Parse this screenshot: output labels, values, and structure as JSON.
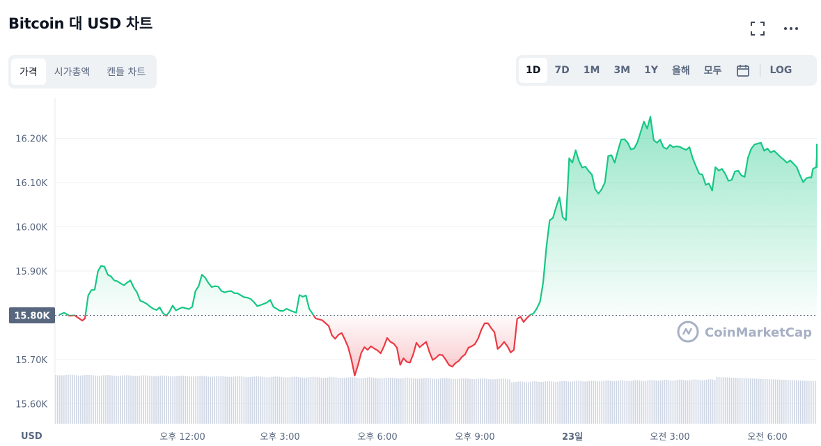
{
  "header": {
    "title": "Bitcoin 대 USD 차트"
  },
  "icons": {
    "fullscreen": "fullscreen-icon",
    "more": "more-dots-icon",
    "calendar": "calendar-icon"
  },
  "tabs": [
    "가격",
    "시가총액",
    "캔들 차트"
  ],
  "range_tabs": [
    "1D",
    "7D",
    "1M",
    "3M",
    "1Y",
    "올해",
    "모두"
  ],
  "log_label": "LOG",
  "watermark": "CoinMarketCap",
  "colors": {
    "up": "#16c784",
    "down": "#ea3943",
    "volume": "#cfd6e4",
    "baseline_label_bg": "#58667e"
  },
  "chart_data": {
    "type": "area",
    "currency_label": "USD",
    "baseline": 15800,
    "baseline_label": "15.80K",
    "ylim": [
      15550,
      16300
    ],
    "y_ticks": [
      {
        "value": 16200,
        "label": "16.20K"
      },
      {
        "value": 16100,
        "label": "16.10K"
      },
      {
        "value": 16000,
        "label": "16.00K"
      },
      {
        "value": 15900,
        "label": "15.90K"
      },
      {
        "value": 15700,
        "label": "15.70K"
      },
      {
        "value": 15600,
        "label": "15.60K"
      }
    ],
    "x_ticks": [
      {
        "hour": 12,
        "label": "오후 12:00"
      },
      {
        "hour": 15,
        "label": "오후 3:00"
      },
      {
        "hour": 18,
        "label": "오후 6:00"
      },
      {
        "hour": 21,
        "label": "오후 9:00"
      },
      {
        "hour": 24,
        "label": "23일"
      },
      {
        "hour": 27,
        "label": "오전 3:00"
      },
      {
        "hour": 30,
        "label": "오전 6:00"
      }
    ],
    "xlim_hours": [
      8.2,
      31.65
    ],
    "series": [
      {
        "points": [
          [
            8.2,
            15801
          ],
          [
            8.36,
            15806
          ],
          [
            8.52,
            15799
          ],
          [
            8.68,
            15800
          ],
          [
            8.8,
            15794
          ],
          [
            8.92,
            15788
          ],
          [
            9.0,
            15793
          ],
          [
            9.1,
            15845
          ],
          [
            9.2,
            15857
          ],
          [
            9.3,
            15858
          ],
          [
            9.4,
            15900
          ],
          [
            9.5,
            15912
          ],
          [
            9.6,
            15910
          ],
          [
            9.7,
            15892
          ],
          [
            9.8,
            15888
          ],
          [
            9.9,
            15879
          ],
          [
            10.0,
            15877
          ],
          [
            10.1,
            15872
          ],
          [
            10.2,
            15868
          ],
          [
            10.3,
            15874
          ],
          [
            10.4,
            15879
          ],
          [
            10.5,
            15863
          ],
          [
            10.6,
            15852
          ],
          [
            10.7,
            15833
          ],
          [
            10.8,
            15830
          ],
          [
            10.9,
            15826
          ],
          [
            11.0,
            15820
          ],
          [
            11.1,
            15815
          ],
          [
            11.2,
            15812
          ],
          [
            11.3,
            15818
          ],
          [
            11.4,
            15805
          ],
          [
            11.5,
            15799
          ],
          [
            11.6,
            15808
          ],
          [
            11.7,
            15822
          ],
          [
            11.8,
            15811
          ],
          [
            11.9,
            15815
          ],
          [
            12.0,
            15818
          ],
          [
            12.2,
            15814
          ],
          [
            12.3,
            15819
          ],
          [
            12.4,
            15855
          ],
          [
            12.5,
            15866
          ],
          [
            12.6,
            15892
          ],
          [
            12.7,
            15885
          ],
          [
            12.8,
            15873
          ],
          [
            12.9,
            15864
          ],
          [
            13.0,
            15866
          ],
          [
            13.1,
            15865
          ],
          [
            13.2,
            15855
          ],
          [
            13.3,
            15852
          ],
          [
            13.4,
            15854
          ],
          [
            13.5,
            15855
          ],
          [
            13.6,
            15850
          ],
          [
            13.7,
            15850
          ],
          [
            13.8,
            15845
          ],
          [
            13.9,
            15841
          ],
          [
            14.0,
            15840
          ],
          [
            14.1,
            15837
          ],
          [
            14.2,
            15830
          ],
          [
            14.3,
            15821
          ],
          [
            14.4,
            15823
          ],
          [
            14.5,
            15826
          ],
          [
            14.6,
            15829
          ],
          [
            14.7,
            15835
          ],
          [
            14.8,
            15819
          ],
          [
            14.9,
            15815
          ],
          [
            15.0,
            15810
          ],
          [
            15.1,
            15810
          ],
          [
            15.2,
            15815
          ],
          [
            15.35,
            15810
          ],
          [
            15.5,
            15806
          ],
          [
            15.6,
            15846
          ],
          [
            15.7,
            15842
          ],
          [
            15.8,
            15845
          ],
          [
            15.9,
            15815
          ],
          [
            16.0,
            15804
          ],
          [
            16.1,
            15793
          ],
          [
            16.3,
            15789
          ],
          [
            16.5,
            15776
          ],
          [
            16.6,
            15755
          ],
          [
            16.7,
            15747
          ],
          [
            16.8,
            15756
          ],
          [
            16.9,
            15760
          ],
          [
            17.0,
            15745
          ],
          [
            17.1,
            15728
          ],
          [
            17.2,
            15700
          ],
          [
            17.3,
            15664
          ],
          [
            17.4,
            15687
          ],
          [
            17.5,
            15715
          ],
          [
            17.6,
            15728
          ],
          [
            17.7,
            15722
          ],
          [
            17.8,
            15730
          ],
          [
            17.9,
            15725
          ],
          [
            18.0,
            15721
          ],
          [
            18.1,
            15714
          ],
          [
            18.2,
            15730
          ],
          [
            18.3,
            15749
          ],
          [
            18.4,
            15740
          ],
          [
            18.5,
            15736
          ],
          [
            18.6,
            15727
          ],
          [
            18.7,
            15688
          ],
          [
            18.8,
            15703
          ],
          [
            18.9,
            15695
          ],
          [
            19.0,
            15693
          ],
          [
            19.1,
            15712
          ],
          [
            19.2,
            15738
          ],
          [
            19.3,
            15728
          ],
          [
            19.4,
            15734
          ],
          [
            19.5,
            15740
          ],
          [
            19.6,
            15717
          ],
          [
            19.7,
            15699
          ],
          [
            19.8,
            15704
          ],
          [
            19.9,
            15711
          ],
          [
            20.0,
            15710
          ],
          [
            20.1,
            15700
          ],
          [
            20.2,
            15688
          ],
          [
            20.3,
            15684
          ],
          [
            20.4,
            15692
          ],
          [
            20.5,
            15697
          ],
          [
            20.6,
            15706
          ],
          [
            20.7,
            15712
          ],
          [
            20.8,
            15727
          ],
          [
            20.9,
            15730
          ],
          [
            21.0,
            15735
          ],
          [
            21.1,
            15748
          ],
          [
            21.2,
            15768
          ],
          [
            21.3,
            15782
          ],
          [
            21.4,
            15782
          ],
          [
            21.5,
            15771
          ],
          [
            21.6,
            15762
          ],
          [
            21.7,
            15724
          ],
          [
            21.8,
            15731
          ],
          [
            21.9,
            15740
          ],
          [
            22.0,
            15730
          ],
          [
            22.1,
            15716
          ],
          [
            22.2,
            15722
          ],
          [
            22.3,
            15792
          ],
          [
            22.4,
            15797
          ],
          [
            22.5,
            15785
          ],
          [
            22.6,
            15794
          ],
          [
            22.7,
            15801
          ],
          [
            22.8,
            15804
          ],
          [
            22.9,
            15815
          ],
          [
            23.0,
            15830
          ],
          [
            23.1,
            15874
          ],
          [
            23.2,
            15955
          ],
          [
            23.3,
            16015
          ],
          [
            23.4,
            16020
          ],
          [
            23.5,
            16045
          ],
          [
            23.6,
            16067
          ],
          [
            23.7,
            16022
          ],
          [
            23.8,
            16015
          ],
          [
            23.9,
            16155
          ],
          [
            24.0,
            16145
          ],
          [
            24.1,
            16173
          ],
          [
            24.2,
            16149
          ],
          [
            24.3,
            16134
          ],
          [
            24.4,
            16136
          ],
          [
            24.5,
            16126
          ],
          [
            24.6,
            16118
          ],
          [
            24.7,
            16085
          ],
          [
            24.8,
            16075
          ],
          [
            24.9,
            16085
          ],
          [
            25.0,
            16100
          ],
          [
            25.1,
            16160
          ],
          [
            25.2,
            16162
          ],
          [
            25.3,
            16145
          ],
          [
            25.4,
            16172
          ],
          [
            25.5,
            16197
          ],
          [
            25.6,
            16198
          ],
          [
            25.7,
            16190
          ],
          [
            25.8,
            16175
          ],
          [
            25.9,
            16177
          ],
          [
            26.0,
            16191
          ],
          [
            26.1,
            16214
          ],
          [
            26.2,
            16238
          ],
          [
            26.3,
            16222
          ],
          [
            26.4,
            16249
          ],
          [
            26.5,
            16196
          ],
          [
            26.6,
            16190
          ],
          [
            26.7,
            16197
          ],
          [
            26.8,
            16180
          ],
          [
            26.9,
            16176
          ],
          [
            27.0,
            16185
          ],
          [
            27.1,
            16180
          ],
          [
            27.2,
            16182
          ],
          [
            27.3,
            16181
          ],
          [
            27.4,
            16177
          ],
          [
            27.5,
            16174
          ],
          [
            27.6,
            16180
          ],
          [
            27.7,
            16155
          ],
          [
            27.8,
            16137
          ],
          [
            27.9,
            16120
          ],
          [
            28.0,
            16118
          ],
          [
            28.1,
            16095
          ],
          [
            28.2,
            16098
          ],
          [
            28.3,
            16082
          ],
          [
            28.4,
            16135
          ],
          [
            28.5,
            16127
          ],
          [
            28.6,
            16131
          ],
          [
            28.7,
            16120
          ],
          [
            28.8,
            16104
          ],
          [
            28.9,
            16106
          ],
          [
            29.0,
            16125
          ],
          [
            29.1,
            16127
          ],
          [
            29.2,
            16116
          ],
          [
            29.3,
            16113
          ],
          [
            29.4,
            16156
          ],
          [
            29.5,
            16176
          ],
          [
            29.6,
            16186
          ],
          [
            29.7,
            16188
          ],
          [
            29.8,
            16190
          ],
          [
            29.9,
            16172
          ],
          [
            30.0,
            16177
          ],
          [
            30.1,
            16168
          ],
          [
            30.2,
            16172
          ],
          [
            30.3,
            16165
          ],
          [
            30.4,
            16158
          ],
          [
            30.5,
            16152
          ],
          [
            30.6,
            16145
          ],
          [
            30.7,
            16150
          ],
          [
            30.8,
            16143
          ],
          [
            30.9,
            16135
          ],
          [
            31.0,
            16117
          ],
          [
            31.1,
            16101
          ],
          [
            31.2,
            16110
          ],
          [
            31.3,
            16112
          ],
          [
            31.35,
            16111
          ],
          [
            31.4,
            16131
          ],
          [
            31.5,
            16135
          ],
          [
            31.6,
            16160
          ],
          [
            31.65,
            16162
          ],
          [
            31.7,
            16142
          ],
          [
            31.8,
            16136
          ],
          [
            31.9,
            16135
          ],
          [
            32.0,
            16175
          ],
          [
            32.1,
            16180
          ],
          [
            32.2,
            16183
          ],
          [
            32.3,
            16185
          ],
          [
            32.4,
            16186
          ],
          [
            32.45,
            16184
          ]
        ]
      }
    ],
    "volume_ceiling": 15660
  }
}
